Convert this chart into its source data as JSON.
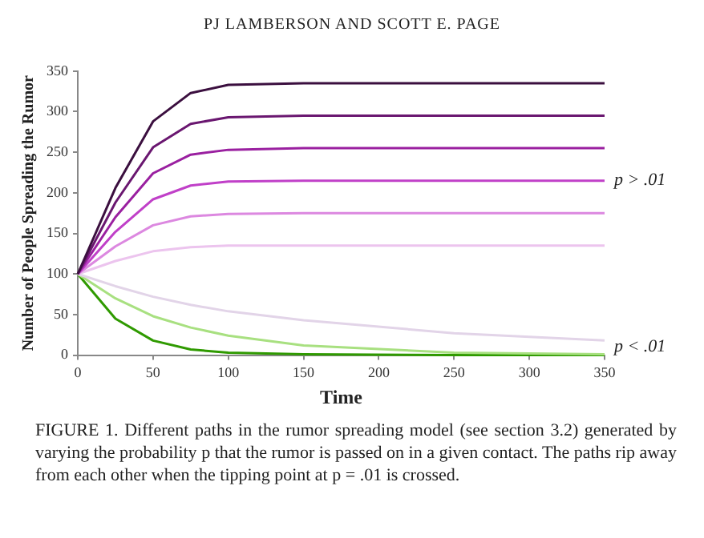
{
  "chart_data": {
    "type": "line",
    "xlabel": "Time",
    "ylabel": "Number of People Spreading the Rumor",
    "x": [
      0,
      25,
      50,
      75,
      100,
      150,
      250,
      350
    ],
    "xlim": [
      0,
      350
    ],
    "xticks": [
      0,
      50,
      100,
      150,
      200,
      250,
      300,
      350
    ],
    "ylim": [
      0,
      350
    ],
    "yticks": [
      0,
      50,
      100,
      150,
      200,
      250,
      300,
      350
    ],
    "grid": false,
    "legend": false,
    "marker": "none",
    "line_style": "solid",
    "series": [
      {
        "color": "#3b0f3f",
        "values": [
          100,
          206,
          288,
          323,
          333,
          335,
          335,
          335
        ]
      },
      {
        "color": "#6a1770",
        "values": [
          100,
          188,
          256,
          285,
          293,
          295,
          295,
          295
        ]
      },
      {
        "color": "#9a20a0",
        "values": [
          100,
          170,
          224,
          247,
          253,
          255,
          255,
          255
        ]
      },
      {
        "color": "#c040c8",
        "values": [
          100,
          152,
          192,
          209,
          214,
          215,
          215,
          215
        ]
      },
      {
        "color": "#dc88e0",
        "values": [
          100,
          134,
          160,
          171,
          174,
          175,
          175,
          175
        ]
      },
      {
        "color": "#ecc4ee",
        "values": [
          100,
          116,
          128,
          133,
          135,
          135,
          135,
          135
        ]
      },
      {
        "color": "#e2d4e8",
        "values": [
          100,
          85,
          72,
          62,
          54,
          43,
          27,
          18
        ]
      },
      {
        "color": "#a8e080",
        "values": [
          100,
          70,
          48,
          34,
          24,
          12,
          3,
          1
        ]
      },
      {
        "color": "#2f9a00",
        "values": [
          100,
          45,
          18,
          7,
          3,
          1,
          0,
          0
        ]
      }
    ],
    "annotations": [
      "PJ LAMBERSON AND SCOTT E. PAGE",
      {
        "text": "p > .01",
        "x": 350,
        "y": 215
      },
      {
        "text": "p < .01",
        "x": 350,
        "y": 10
      },
      "FIGURE 1. Different paths in the rumor spreading model (see section 3.2) generated by varying the probability p that the rumor is passed on in a given contact. The paths rip away from each other when the tipping point at p = .01 is crossed."
    ]
  }
}
